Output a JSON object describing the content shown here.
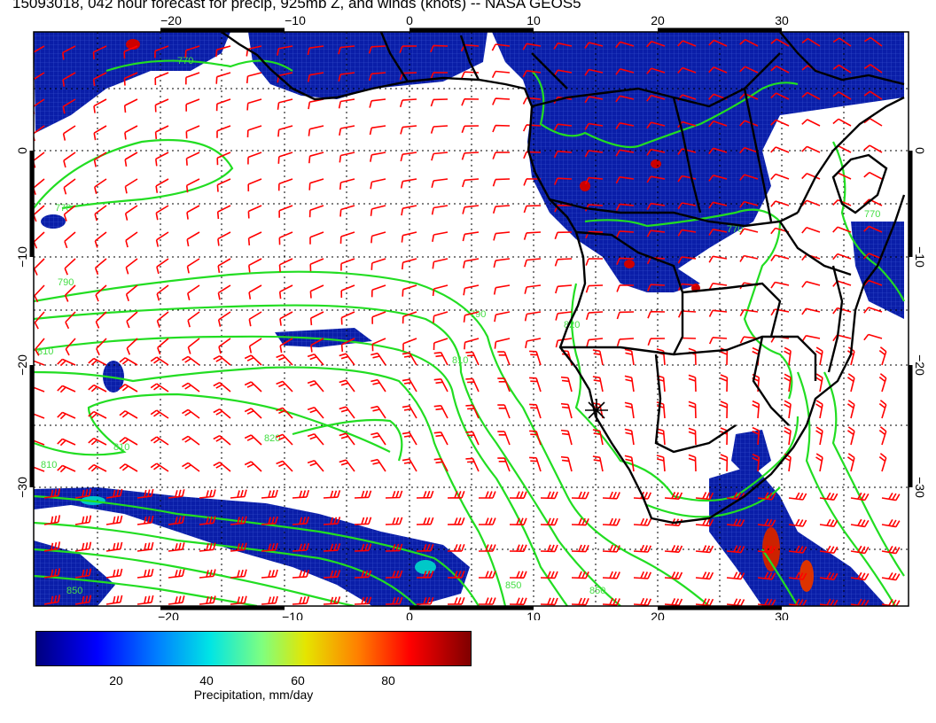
{
  "title": "15093018, 042 hour forecast for precip, 925mb Z, and winds (knots) -- NASA GEOS5",
  "map": {
    "region": "South Atlantic / Southern Africa",
    "lon_range": [
      -30,
      40
    ],
    "lat_range": [
      -39,
      10
    ],
    "top_lon_ticks": [
      "−20",
      "−10",
      "0",
      "10",
      "20",
      "30"
    ],
    "bottom_lon_ticks": [
      "−20",
      "−10",
      "0",
      "10",
      "20",
      "30"
    ],
    "left_lat_ticks": [
      "0",
      "−10",
      "−20",
      "−30"
    ],
    "right_lat_ticks": [
      "0",
      "−10",
      "−20",
      "−30"
    ],
    "contour_labels": [
      "770",
      "770",
      "790",
      "790",
      "810",
      "810",
      "810",
      "810",
      "820",
      "820",
      "850",
      "850",
      "850",
      "770",
      "770"
    ],
    "colors": {
      "contour": "#22dd22",
      "wind_barb": "#ff0000",
      "coastline": "#000000",
      "precip_low": "#00007f",
      "precip_high": "#7f0000"
    },
    "marker": "asterisk-station-marker"
  },
  "colorbar": {
    "ticks": [
      "20",
      "40",
      "60",
      "80"
    ],
    "label": "Precipitation, mm/day",
    "range": [
      0,
      100
    ]
  }
}
